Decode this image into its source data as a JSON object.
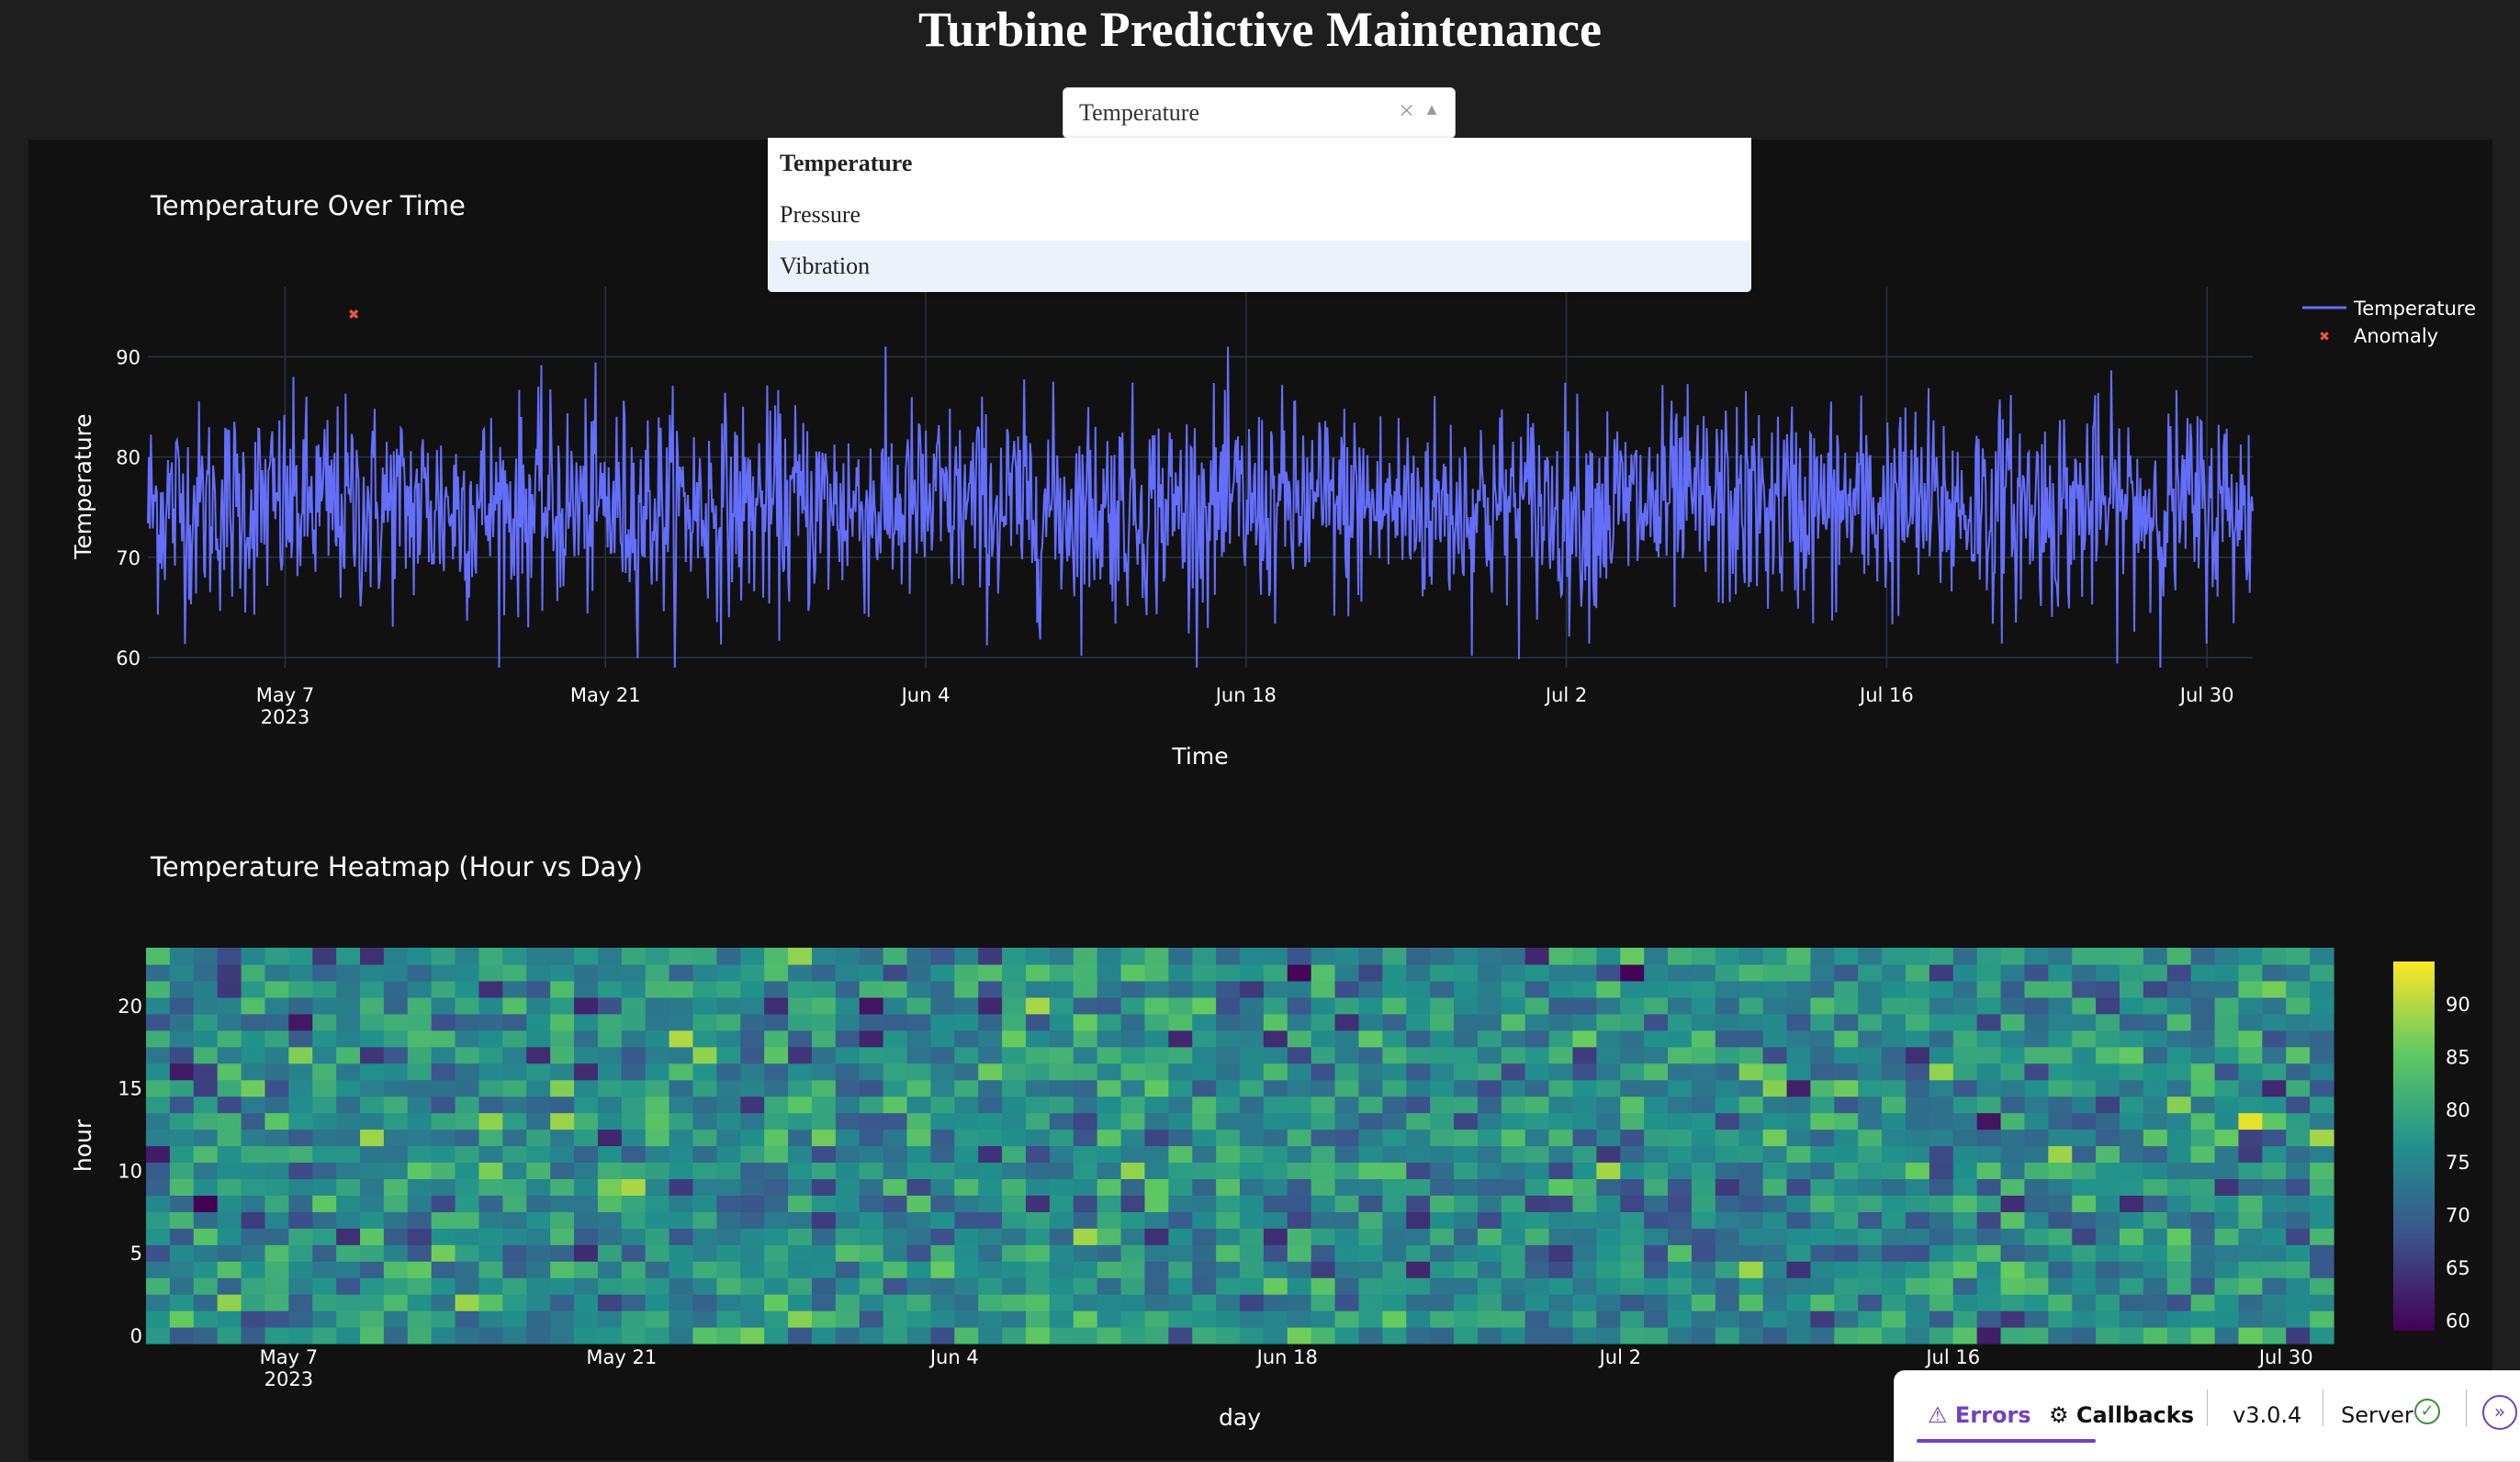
{
  "page": {
    "title": "Turbine Predictive Maintenance"
  },
  "dropdown": {
    "value": "Temperature",
    "options": [
      "Temperature",
      "Pressure",
      "Vibration"
    ],
    "focused_option": "Vibration"
  },
  "icons": {
    "clear": "clear-x-icon",
    "arrow": "caret-up-icon",
    "server_ok": "check-circle-icon",
    "expand": "chevron-right-double-icon",
    "errors": "warning-icon",
    "callbacks": "callbacks-icon"
  },
  "devtools": {
    "errors": "Errors",
    "callbacks": "Callbacks",
    "version": "v3.0.4",
    "server": "Server"
  },
  "colors": {
    "line": "#636efa",
    "anomaly": "#ef553b",
    "background": "#111111",
    "page": "#1e1e1e"
  },
  "chart_data": [
    {
      "type": "line",
      "title": "Temperature Over Time",
      "xlabel": "Time",
      "ylabel": "Temperature",
      "x_range": [
        "2023-05-01",
        "2023-08-01"
      ],
      "x_ticks": [
        "May 7",
        "May 21",
        "Jun 4",
        "Jun 18",
        "Jul 2",
        "Jul 16",
        "Jul 30"
      ],
      "x_tick_year": "2023",
      "y_ticks": [
        60,
        70,
        80,
        90
      ],
      "ylim": [
        59,
        97
      ],
      "legend_position": "top-right",
      "series": [
        {
          "name": "Temperature",
          "mean": 75,
          "min": 59,
          "max": 91,
          "note_values": "hourly samples, approx 75 ± 6"
        },
        {
          "name": "Anomaly",
          "points": [
            {
              "x": "2023-05-10",
              "y": 94.3
            }
          ]
        }
      ]
    },
    {
      "type": "heatmap",
      "title": "Temperature Heatmap (Hour vs Day)",
      "xlabel": "day",
      "ylabel": "hour",
      "x_range": [
        "2023-05-01",
        "2023-08-01"
      ],
      "x_ticks": [
        "May 7",
        "May 21",
        "Jun 4",
        "Jun 18",
        "Jul 2",
        "Jul 16",
        "Jul 30"
      ],
      "x_tick_year": "2023",
      "y_ticks": [
        0,
        5,
        10,
        15,
        20
      ],
      "hours": 24,
      "days": 92,
      "colorbar_ticks": [
        60,
        65,
        70,
        75,
        80,
        85,
        90
      ],
      "colorscale": "Viridis",
      "zlim": [
        59,
        94
      ]
    }
  ]
}
